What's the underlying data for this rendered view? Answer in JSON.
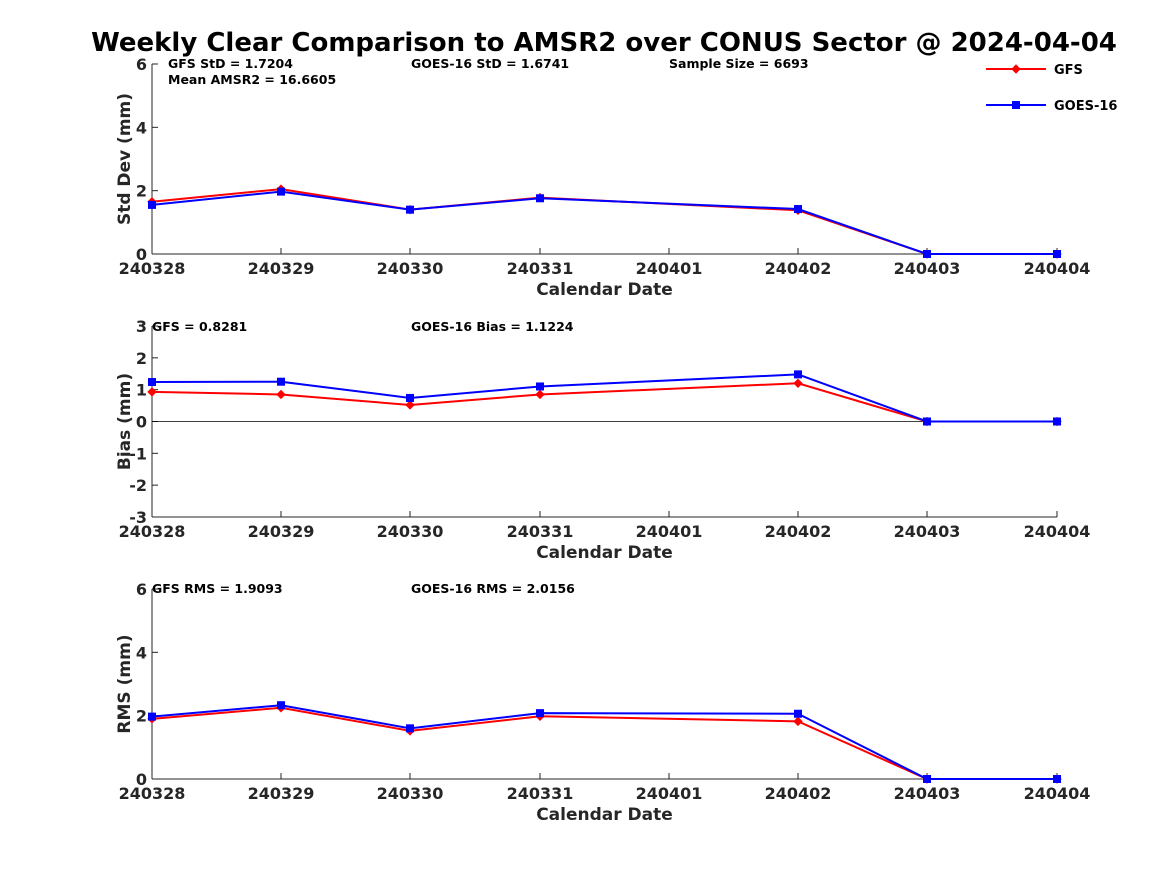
{
  "figure": {
    "title": "Weekly Clear Comparison to AMSR2 over CONUS Sector @ 2024-04-04"
  },
  "legend": [
    {
      "name": "GFS",
      "color": "#ff0000",
      "marker": "diamond"
    },
    {
      "name": "GOES-16",
      "color": "#0000ff",
      "marker": "square"
    }
  ],
  "chart_data": [
    {
      "type": "line",
      "xlabel": "Calendar Date",
      "ylabel": "Std Dev (mm)",
      "ylim": [
        0,
        6
      ],
      "yticks": [
        "0",
        "2",
        "4",
        "6"
      ],
      "ytick_values": [
        0,
        2,
        4,
        6
      ],
      "xticks": [
        "240328",
        "240329",
        "240330",
        "240331",
        "240401",
        "240402",
        "240403",
        "240404"
      ],
      "zero_line": false,
      "annotations": [
        "GFS StD = 1.7204",
        "Mean AMSR2 = 16.6605",
        "GOES-16 StD = 1.6741",
        "Sample Size = 6693"
      ],
      "series": [
        {
          "name": "GFS",
          "x": [
            "240328",
            "240329",
            "240330",
            "240331",
            "240402",
            "240403",
            "240404"
          ],
          "values": [
            1.65,
            2.05,
            1.4,
            1.78,
            1.38,
            0,
            0
          ]
        },
        {
          "name": "GOES-16",
          "x": [
            "240328",
            "240329",
            "240330",
            "240331",
            "240402",
            "240403",
            "240404"
          ],
          "values": [
            1.55,
            1.97,
            1.4,
            1.76,
            1.42,
            0,
            0
          ]
        }
      ]
    },
    {
      "type": "line",
      "xlabel": "Calendar Date",
      "ylabel": "Bias (mm)",
      "ylim": [
        -3,
        3
      ],
      "yticks": [
        "-3",
        "-2",
        "-1",
        "0",
        "1",
        "2",
        "3"
      ],
      "ytick_values": [
        -3,
        -2,
        -1,
        0,
        1,
        2,
        3
      ],
      "xticks": [
        "240328",
        "240329",
        "240330",
        "240331",
        "240401",
        "240402",
        "240403",
        "240404"
      ],
      "zero_line": true,
      "annotations": [
        "GFS = 0.8281",
        "GOES-16 Bias  = 1.1224"
      ],
      "series": [
        {
          "name": "GFS",
          "x": [
            "240328",
            "240329",
            "240330",
            "240331",
            "240402",
            "240403",
            "240404"
          ],
          "values": [
            0.93,
            0.85,
            0.52,
            0.85,
            1.2,
            0,
            0
          ]
        },
        {
          "name": "GOES-16",
          "x": [
            "240328",
            "240329",
            "240330",
            "240331",
            "240402",
            "240403",
            "240404"
          ],
          "values": [
            1.24,
            1.25,
            0.74,
            1.1,
            1.48,
            0,
            0
          ]
        }
      ]
    },
    {
      "type": "line",
      "xlabel": "Calendar Date",
      "ylabel": "RMS (mm)",
      "ylim": [
        0,
        6
      ],
      "yticks": [
        "0",
        "2",
        "4",
        "6"
      ],
      "ytick_values": [
        0,
        2,
        4,
        6
      ],
      "xticks": [
        "240328",
        "240329",
        "240330",
        "240331",
        "240401",
        "240402",
        "240403",
        "240404"
      ],
      "zero_line": false,
      "annotations": [
        "GFS RMS = 1.9093",
        "GOES-16 RMS = 2.0156"
      ],
      "series": [
        {
          "name": "GFS",
          "x": [
            "240328",
            "240329",
            "240330",
            "240331",
            "240402",
            "240403",
            "240404"
          ],
          "values": [
            1.9,
            2.25,
            1.52,
            1.98,
            1.82,
            0,
            0
          ]
        },
        {
          "name": "GOES-16",
          "x": [
            "240328",
            "240329",
            "240330",
            "240331",
            "240402",
            "240403",
            "240404"
          ],
          "values": [
            1.97,
            2.33,
            1.6,
            2.08,
            2.06,
            0,
            0
          ]
        }
      ]
    }
  ]
}
